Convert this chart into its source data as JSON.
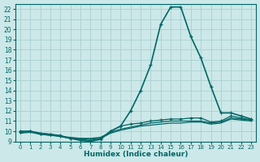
{
  "xlabel": "Humidex (Indice chaleur)",
  "ylabel": "",
  "bg_color": "#cce8e8",
  "grid_color": "#aad0d0",
  "line_color": "#006666",
  "xlim": [
    -0.5,
    23.5
  ],
  "ylim": [
    9,
    22.5
  ],
  "yticks": [
    9,
    10,
    11,
    12,
    13,
    14,
    15,
    16,
    17,
    18,
    19,
    20,
    21,
    22
  ],
  "xticks": [
    0,
    1,
    2,
    3,
    4,
    5,
    6,
    7,
    8,
    9,
    10,
    11,
    12,
    13,
    14,
    15,
    16,
    17,
    18,
    19,
    20,
    21,
    22,
    23
  ],
  "series": [
    {
      "x": [
        0,
        1,
        2,
        3,
        4,
        5,
        6,
        7,
        8,
        9,
        10,
        11,
        12,
        13,
        14,
        15,
        16,
        17,
        18,
        19,
        20,
        21,
        22,
        23
      ],
      "y": [
        10.0,
        10.0,
        9.8,
        9.7,
        9.5,
        9.3,
        9.1,
        9.0,
        9.2,
        10.0,
        10.5,
        12.0,
        14.0,
        16.5,
        20.5,
        22.2,
        22.2,
        19.3,
        17.2,
        14.4,
        11.8,
        11.8,
        11.5,
        11.2
      ],
      "color": "#006666",
      "lw": 1.2,
      "marker": "+"
    },
    {
      "x": [
        0,
        1,
        2,
        3,
        4,
        5,
        6,
        7,
        8,
        9,
        10,
        11,
        12,
        13,
        14,
        15,
        16,
        17,
        18,
        19,
        20,
        21,
        22,
        23
      ],
      "y": [
        9.8,
        9.9,
        9.7,
        9.6,
        9.5,
        9.3,
        9.3,
        9.2,
        9.3,
        9.8,
        10.1,
        10.3,
        10.5,
        10.6,
        10.7,
        10.8,
        10.8,
        10.9,
        10.9,
        10.7,
        10.8,
        11.2,
        11.1,
        11.0
      ],
      "color": "#006666",
      "lw": 0.9,
      "marker": null
    },
    {
      "x": [
        0,
        1,
        2,
        3,
        4,
        5,
        6,
        7,
        8,
        9,
        10,
        11,
        12,
        13,
        14,
        15,
        16,
        17,
        18,
        19,
        20,
        21,
        22,
        23
      ],
      "y": [
        9.9,
        10.0,
        9.7,
        9.6,
        9.5,
        9.4,
        9.3,
        9.3,
        9.4,
        9.9,
        10.2,
        10.4,
        10.6,
        10.8,
        10.9,
        11.0,
        11.0,
        11.0,
        11.0,
        10.8,
        10.9,
        11.3,
        11.2,
        11.1
      ],
      "color": "#006666",
      "lw": 0.9,
      "marker": null
    },
    {
      "x": [
        0,
        1,
        2,
        3,
        4,
        5,
        6,
        7,
        8,
        9,
        10,
        11,
        12,
        13,
        14,
        15,
        16,
        17,
        18,
        19,
        20,
        21,
        22,
        23
      ],
      "y": [
        9.9,
        10.0,
        9.8,
        9.7,
        9.6,
        9.3,
        9.2,
        9.1,
        9.3,
        10.0,
        10.5,
        10.7,
        10.8,
        11.0,
        11.1,
        11.2,
        11.2,
        11.3,
        11.3,
        10.9,
        11.0,
        11.5,
        11.3,
        11.1
      ],
      "color": "#006666",
      "lw": 0.9,
      "marker": "+"
    }
  ]
}
